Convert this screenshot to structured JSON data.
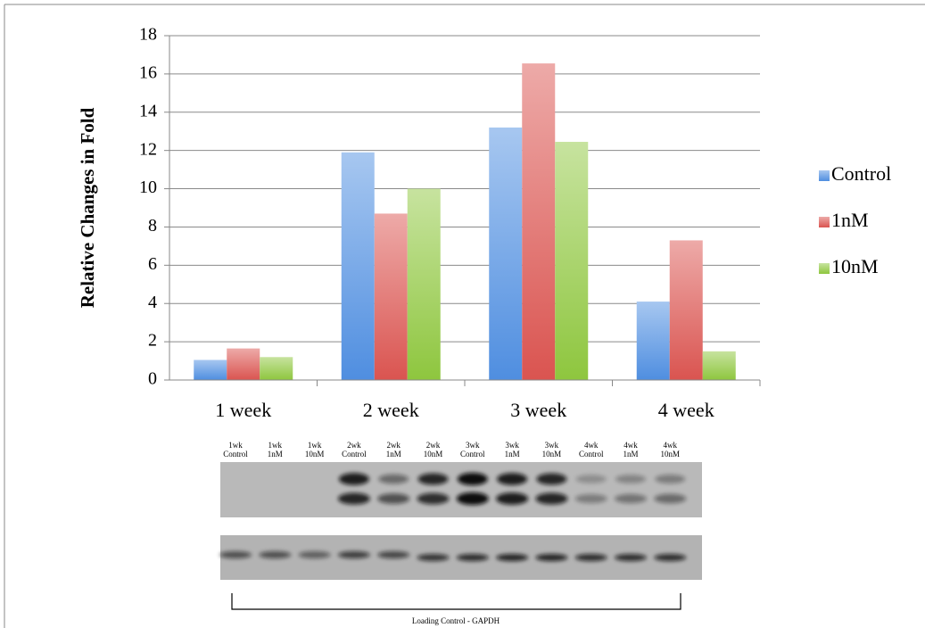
{
  "chart_data": {
    "type": "bar",
    "y_label": "Relative Changes in Fold",
    "categories": [
      "1 week",
      "2 week",
      "3 week",
      "4 week"
    ],
    "series": [
      {
        "name": "Control",
        "color": "#4f8ee0",
        "values": [
          1.05,
          11.9,
          13.2,
          4.1
        ]
      },
      {
        "name": "1nM",
        "color": "#da5450",
        "values": [
          1.65,
          8.7,
          16.55,
          7.3
        ]
      },
      {
        "name": "10nM",
        "color": "#8ec63e",
        "values": [
          1.2,
          10.0,
          12.45,
          1.5
        ]
      }
    ],
    "ylim": [
      0,
      18
    ],
    "yticks": [
      0,
      2,
      4,
      6,
      8,
      10,
      12,
      14,
      16,
      18
    ],
    "grid": true,
    "legend": "right"
  },
  "blot": {
    "lane_labels": [
      [
        "1wk",
        "Control"
      ],
      [
        "1wk",
        "1nM"
      ],
      [
        "1wk",
        "10nM"
      ],
      [
        "2wk",
        "Control"
      ],
      [
        "2wk",
        "1nM"
      ],
      [
        "2wk",
        "10nM"
      ],
      [
        "3wk",
        "Control"
      ],
      [
        "3wk",
        "1nM"
      ],
      [
        "3wk",
        "10nM"
      ],
      [
        "4wk",
        "Control"
      ],
      [
        "4wk",
        "1nM"
      ],
      [
        "4wk",
        "10nM"
      ]
    ],
    "caption": "Loading Control - GAPDH"
  }
}
